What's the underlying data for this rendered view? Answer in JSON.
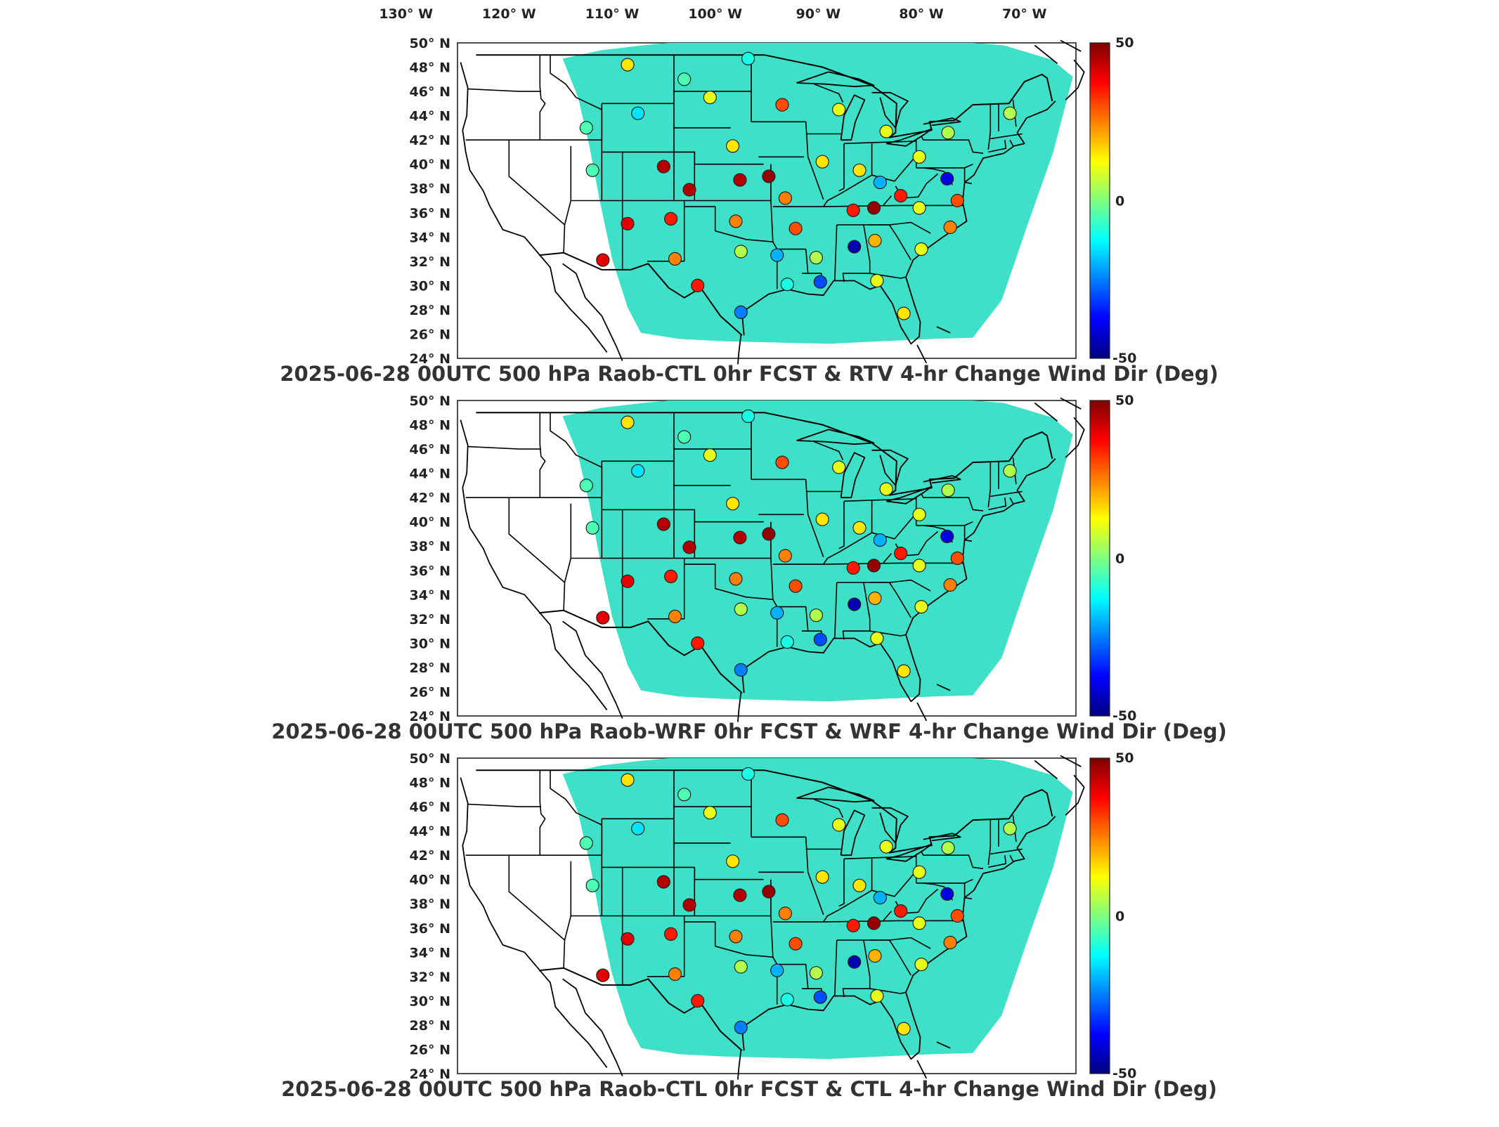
{
  "top_lon_labels": [
    "130° W",
    "120° W",
    "110° W",
    "100° W",
    "90° W",
    "80° W",
    "70° W"
  ],
  "lat_labels": [
    "50° N",
    "48° N",
    "46° N",
    "44° N",
    "42° N",
    "40° N",
    "38° N",
    "36° N",
    "34° N",
    "32° N",
    "30° N",
    "28° N",
    "26° N",
    "24° N"
  ],
  "colorbar": {
    "max_label": "50",
    "mid_label": "0",
    "min_label": "-50",
    "colors": [
      "#00007f",
      "#0000ff",
      "#007fff",
      "#00ffff",
      "#7fff7f",
      "#ffff00",
      "#ff7f00",
      "#ff0000",
      "#7f0000"
    ]
  },
  "panels": [
    {
      "title": "2025-06-28 00UTC 500 hPa Raob-CTL 0hr FCST & RTV 4-hr Change Wind Dir (Deg)"
    },
    {
      "title": "2025-06-28 00UTC 500 hPa Raob-WRF 0hr FCST & WRF 4-hr Change Wind Dir (Deg)"
    },
    {
      "title": "2025-06-28 00UTC 500 hPa Raob-CTL 0hr FCST & CTL 4-hr Change Wind Dir (Deg)"
    }
  ],
  "stations": [
    {
      "lon": -108.5,
      "lat": 48.2,
      "v": 15
    },
    {
      "lon": -103,
      "lat": 47,
      "v": -5
    },
    {
      "lon": -100.5,
      "lat": 45.5,
      "v": 10
    },
    {
      "lon": -107.5,
      "lat": 44.2,
      "v": -15
    },
    {
      "lon": -112.5,
      "lat": 43,
      "v": -5
    },
    {
      "lon": -96.8,
      "lat": 48.7,
      "v": -10
    },
    {
      "lon": -93.5,
      "lat": 44.9,
      "v": 30
    },
    {
      "lon": -88,
      "lat": 44.5,
      "v": 10
    },
    {
      "lon": -83.4,
      "lat": 42.7,
      "v": 10
    },
    {
      "lon": -77.4,
      "lat": 42.6,
      "v": 5
    },
    {
      "lon": -71.4,
      "lat": 44.2,
      "v": 5
    },
    {
      "lon": -98.3,
      "lat": 41.5,
      "v": 15
    },
    {
      "lon": -89.6,
      "lat": 40.2,
      "v": 15
    },
    {
      "lon": -86,
      "lat": 39.5,
      "v": 15
    },
    {
      "lon": -80.2,
      "lat": 40.6,
      "v": 10
    },
    {
      "lon": -97.6,
      "lat": 38.7,
      "v": 45
    },
    {
      "lon": -94.8,
      "lat": 39,
      "v": 48
    },
    {
      "lon": -102.5,
      "lat": 37.9,
      "v": 45
    },
    {
      "lon": -93.2,
      "lat": 37.2,
      "v": 25
    },
    {
      "lon": -84,
      "lat": 38.5,
      "v": -20
    },
    {
      "lon": -77.5,
      "lat": 38.8,
      "v": -40
    },
    {
      "lon": -82,
      "lat": 37.4,
      "v": 35
    },
    {
      "lon": -108.5,
      "lat": 35.1,
      "v": 40
    },
    {
      "lon": -104.3,
      "lat": 35.5,
      "v": 35
    },
    {
      "lon": -98,
      "lat": 35.3,
      "v": 25
    },
    {
      "lon": -103.9,
      "lat": 32.2,
      "v": 25
    },
    {
      "lon": -97.5,
      "lat": 32.8,
      "v": 5
    },
    {
      "lon": -94,
      "lat": 32.5,
      "v": -20
    },
    {
      "lon": -90.2,
      "lat": 32.3,
      "v": 5
    },
    {
      "lon": -86.5,
      "lat": 33.2,
      "v": -45
    },
    {
      "lon": -84.5,
      "lat": 33.7,
      "v": 20
    },
    {
      "lon": -80,
      "lat": 33,
      "v": 10
    },
    {
      "lon": -77.2,
      "lat": 34.8,
      "v": 25
    },
    {
      "lon": -80.2,
      "lat": 36.4,
      "v": 10
    },
    {
      "lon": -76.5,
      "lat": 37,
      "v": 30
    },
    {
      "lon": -84.6,
      "lat": 36.4,
      "v": 48
    },
    {
      "lon": -86.6,
      "lat": 36.2,
      "v": 35
    },
    {
      "lon": -92.2,
      "lat": 34.7,
      "v": 30
    },
    {
      "lon": -101.7,
      "lat": 30,
      "v": 35
    },
    {
      "lon": -97.5,
      "lat": 27.8,
      "v": -25
    },
    {
      "lon": -93,
      "lat": 30.1,
      "v": -10
    },
    {
      "lon": -89.8,
      "lat": 30.3,
      "v": -30
    },
    {
      "lon": -84.3,
      "lat": 30.4,
      "v": 10
    },
    {
      "lon": -81.7,
      "lat": 27.7,
      "v": 15
    },
    {
      "lon": -110.9,
      "lat": 32.1,
      "v": 40
    },
    {
      "lon": -105,
      "lat": 39.8,
      "v": 45
    },
    {
      "lon": -111.9,
      "lat": 39.5,
      "v": -5
    }
  ]
}
